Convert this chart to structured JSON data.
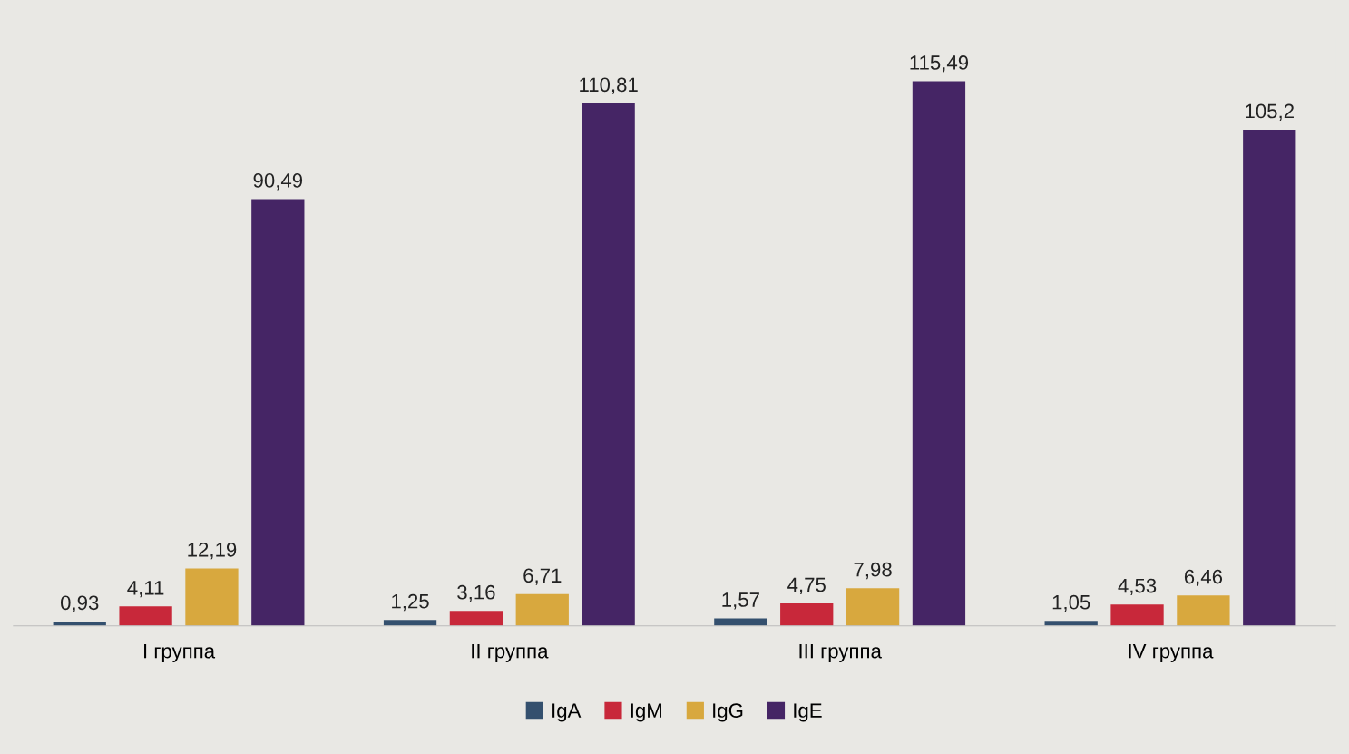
{
  "chart_data": {
    "type": "bar",
    "categories": [
      "I группа",
      "II группа",
      "III группа",
      "IV группа"
    ],
    "series": [
      {
        "name": "IgA",
        "color": "#34506e",
        "values": [
          0.93,
          1.25,
          1.57,
          1.05
        ],
        "value_labels": [
          "0,93",
          "1,25",
          "1,57",
          "1,05"
        ]
      },
      {
        "name": "IgM",
        "color": "#c8283a",
        "values": [
          4.11,
          3.16,
          4.75,
          4.53
        ],
        "value_labels": [
          "4,11",
          "3,16",
          "4,75",
          "4,53"
        ]
      },
      {
        "name": "IgG",
        "color": "#d8a83e",
        "values": [
          12.19,
          6.71,
          7.98,
          6.46
        ],
        "value_labels": [
          "12,19",
          "6,71",
          "7,98",
          "6,46"
        ]
      },
      {
        "name": "IgE",
        "color": "#452565",
        "values": [
          90.49,
          110.81,
          115.49,
          105.2
        ],
        "value_labels": [
          "90,49",
          "110,81",
          "115,49",
          "105,2"
        ]
      }
    ],
    "legend": "bottom",
    "grid": false
  }
}
